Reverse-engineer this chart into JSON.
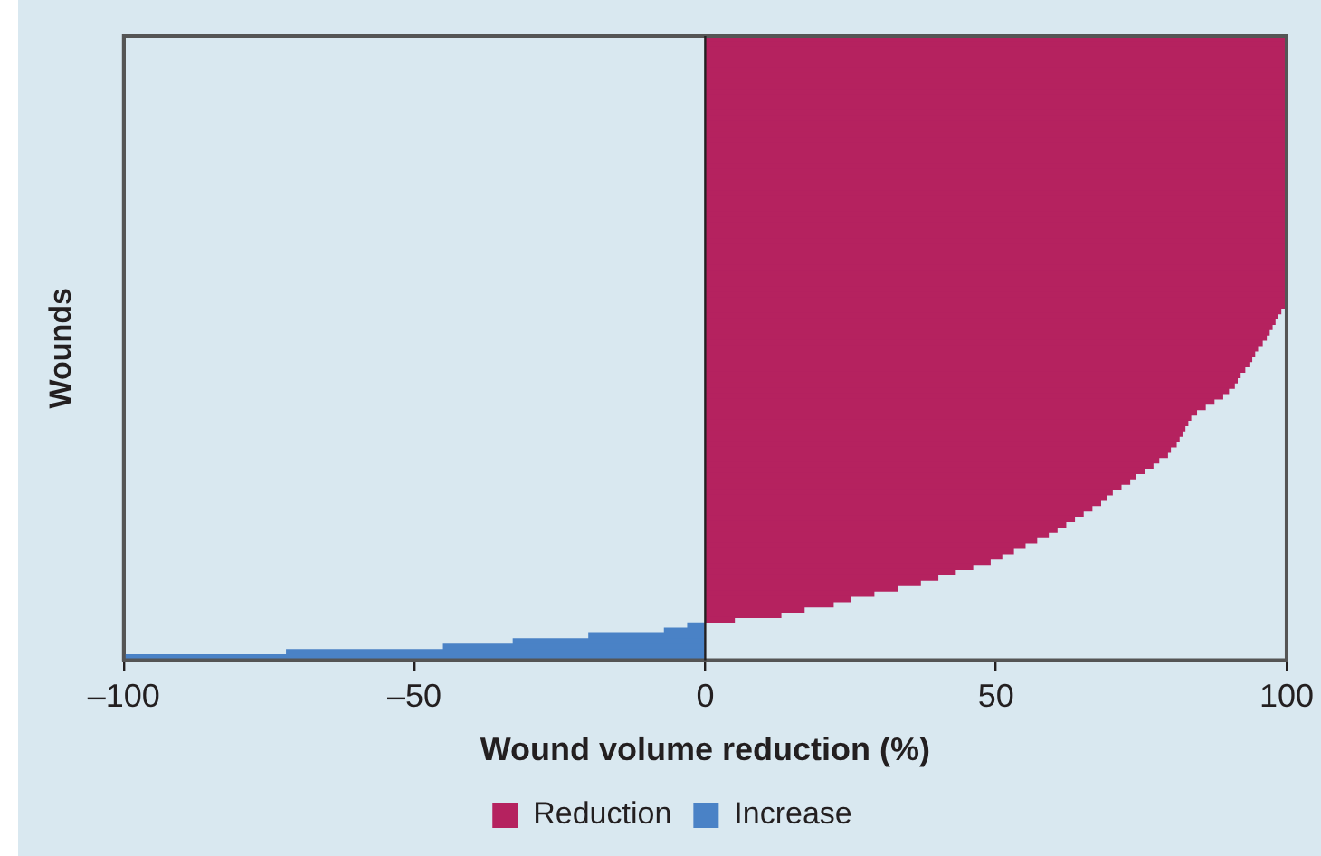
{
  "chart_data": {
    "type": "bar",
    "orientation": "horizontal",
    "xlabel": "Wound volume reduction (%)",
    "ylabel": "Wounds",
    "categories": [
      null,
      null,
      null,
      null,
      null,
      null,
      null,
      null,
      null,
      null,
      null,
      null,
      null,
      null,
      null,
      null,
      null,
      null,
      null,
      null,
      null,
      null,
      null,
      null,
      null,
      null,
      null,
      null,
      null,
      null,
      null,
      null,
      null,
      null,
      null,
      null,
      null,
      null,
      null,
      null,
      null,
      null,
      null,
      null,
      null,
      null,
      null,
      null,
      null,
      null,
      null,
      null,
      null,
      null,
      null,
      null,
      null,
      null,
      null,
      null,
      null,
      null,
      null,
      null,
      null,
      null,
      null,
      null,
      null,
      null,
      null,
      null,
      null,
      null,
      null,
      null,
      null,
      null,
      null,
      null,
      null,
      null,
      null,
      null,
      null,
      null,
      null,
      null,
      null,
      null,
      null,
      null,
      null,
      null,
      null,
      null,
      null,
      null,
      null,
      null,
      null,
      null,
      null,
      null,
      null,
      null,
      null,
      null,
      null,
      null,
      null,
      null,
      null,
      null,
      null,
      null,
      null
    ],
    "series": [
      {
        "name": "Reduction",
        "color": "#b5225f",
        "values": [
          100,
          100,
          100,
          100,
          100,
          100,
          100,
          100,
          100,
          100,
          100,
          100,
          100,
          100,
          100,
          100,
          100,
          100,
          100,
          100,
          100,
          100,
          100,
          100,
          100,
          100,
          100,
          100,
          100,
          100,
          100,
          100,
          100,
          100,
          100,
          100,
          100,
          100,
          100,
          100,
          100,
          100,
          100,
          100,
          100,
          100,
          100,
          100,
          100,
          100,
          99.8,
          99,
          98.5,
          98,
          97.5,
          97,
          96.5,
          95.8,
          95,
          94.5,
          94,
          93.5,
          92.8,
          92,
          91.5,
          91,
          90,
          89,
          87.5,
          86,
          84.5,
          83.5,
          83,
          82.5,
          82,
          81.5,
          81,
          80,
          79.5,
          78,
          77,
          75.5,
          74,
          73,
          71.5,
          70,
          69,
          68,
          66.5,
          65,
          63.5,
          62,
          60.5,
          59,
          57,
          55,
          53,
          51,
          49,
          46,
          43,
          40,
          37,
          33,
          29,
          25,
          22,
          17,
          13,
          5,
          null,
          null,
          null,
          null,
          null,
          null,
          null
        ]
      },
      {
        "name": "Increase",
        "color": "#4a82c6",
        "values": [
          null,
          null,
          null,
          null,
          null,
          null,
          null,
          null,
          null,
          null,
          null,
          null,
          null,
          null,
          null,
          null,
          null,
          null,
          null,
          null,
          null,
          null,
          null,
          null,
          null,
          null,
          null,
          null,
          null,
          null,
          null,
          null,
          null,
          null,
          null,
          null,
          null,
          null,
          null,
          null,
          null,
          null,
          null,
          null,
          null,
          null,
          null,
          null,
          null,
          null,
          null,
          null,
          null,
          null,
          null,
          null,
          null,
          null,
          null,
          null,
          null,
          null,
          null,
          null,
          null,
          null,
          null,
          null,
          null,
          null,
          null,
          null,
          null,
          null,
          null,
          null,
          null,
          null,
          null,
          null,
          null,
          null,
          null,
          null,
          null,
          null,
          null,
          null,
          null,
          null,
          null,
          null,
          null,
          null,
          null,
          null,
          null,
          null,
          null,
          null,
          null,
          null,
          null,
          null,
          null,
          null,
          null,
          null,
          null,
          null,
          -3,
          -7,
          -20,
          -33,
          -45,
          -72,
          -100
        ]
      }
    ],
    "xlim": [
      -100,
      100
    ],
    "xticks": [
      {
        "value": -100,
        "label": "–100"
      },
      {
        "value": -50,
        "label": "–50"
      },
      0,
      50,
      100
    ],
    "grid": false,
    "ref_lines": [
      {
        "axis": "x",
        "value": 0,
        "color": "#231f20"
      }
    ],
    "legend": "bottom"
  }
}
